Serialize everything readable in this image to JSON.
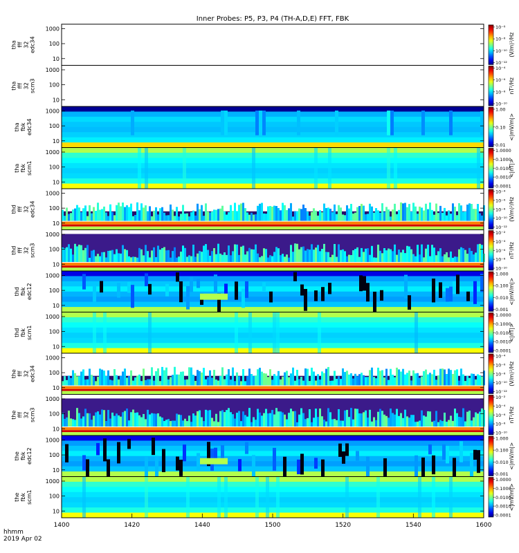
{
  "title": "Inner Probes: P5, P3, P4 (TH-A,D,E) FFT, FBK",
  "footer": {
    "time_label": "hhmm",
    "date_label": "2019 Apr 02"
  },
  "chart_data": {
    "type": "heatmap",
    "title": "Inner Probes: P5, P3, P4 (TH-A,D,E) FFT, FBK",
    "x_ticks": [
      "1400",
      "1420",
      "1440",
      "1500",
      "1520",
      "1540",
      "1600"
    ],
    "xlim": [
      "1400",
      "1600"
    ],
    "y_scale": "log",
    "y_ticks": [
      "10",
      "100",
      "1000"
    ],
    "colormap": "rainbow",
    "panels": [
      {
        "id": "tha-fff-edc34",
        "ylabel": [
          "tha",
          "fff",
          "32",
          "edc34"
        ],
        "style": "fff_empty",
        "cbar_label": "(V/m)²/Hz",
        "cbar_ticks": [
          "10⁻⁶",
          "10⁻⁸",
          "10⁻¹⁰",
          "10⁻¹²"
        ]
      },
      {
        "id": "tha-fff-scm3",
        "ylabel": [
          "tha",
          "fff",
          "32",
          "scm3"
        ],
        "style": "fff_empty",
        "cbar_label": "nT²/Hz",
        "cbar_ticks": [
          "10⁻⁴",
          "10⁻⁶",
          "10⁻⁸",
          "10⁻¹⁰"
        ]
      },
      {
        "id": "tha-fbk-edc34",
        "ylabel": [
          "tha",
          "fbk",
          "edc34"
        ],
        "style": "fbk_e_a",
        "cbar_label": "<|mV/m|>",
        "cbar_ticks": [
          "1.00",
          "0.10",
          "0.01"
        ]
      },
      {
        "id": "tha-fbk-scm1",
        "ylabel": [
          "tha",
          "fbk",
          "scm1"
        ],
        "style": "fbk_b",
        "cbar_label": "<|nT|>",
        "cbar_ticks": [
          "1.0000",
          "0.1000",
          "0.0100",
          "0.0010",
          "0.0001"
        ]
      },
      {
        "id": "thd-fff-edc34",
        "ylabel": [
          "thd",
          "fff",
          "32",
          "edc34"
        ],
        "style": "fff_e",
        "cbar_label": "(V/m)²/Hz",
        "cbar_ticks": [
          "10⁻⁴",
          "10⁻⁶",
          "10⁻⁸",
          "10⁻¹⁰",
          "10⁻¹²"
        ]
      },
      {
        "id": "thd-fff-scm3",
        "ylabel": [
          "thd",
          "fff",
          "32",
          "scm3"
        ],
        "style": "fff_b",
        "cbar_label": "nT²/Hz",
        "cbar_ticks": [
          "10⁻²",
          "10⁻⁴",
          "10⁻⁶",
          "10⁻⁸",
          "10⁻¹⁰"
        ]
      },
      {
        "id": "thd-fbk-edc12",
        "ylabel": [
          "thd",
          "fbk",
          "edc12"
        ],
        "style": "fbk_e",
        "cbar_label": "<|mV/m|>",
        "cbar_ticks": [
          "1.000",
          "0.100",
          "0.010",
          "0.001"
        ]
      },
      {
        "id": "thd-fbk-scm1",
        "ylabel": [
          "thd",
          "fbk",
          "scm1"
        ],
        "style": "fbk_b",
        "cbar_label": "<|nT|>",
        "cbar_ticks": [
          "1.0000",
          "0.1000",
          "0.0100",
          "0.0010",
          "0.0001"
        ]
      },
      {
        "id": "the-fff-edc34",
        "ylabel": [
          "the",
          "fff",
          "32",
          "edc34"
        ],
        "style": "fff_e",
        "cbar_label": "(V/m)²/Hz",
        "cbar_ticks": [
          "10⁻⁴",
          "10⁻⁶",
          "10⁻⁸",
          "10⁻¹⁰",
          "10⁻¹²"
        ]
      },
      {
        "id": "the-fff-scm3",
        "ylabel": [
          "the",
          "fff",
          "32",
          "scm3"
        ],
        "style": "fff_b",
        "cbar_label": "nT²/Hz",
        "cbar_ticks": [
          "10⁻²",
          "10⁻⁴",
          "10⁻⁶",
          "10⁻⁸",
          "10⁻¹⁰"
        ]
      },
      {
        "id": "the-fbk-edc12",
        "ylabel": [
          "the",
          "fbk",
          "edc12"
        ],
        "style": "fbk_e",
        "cbar_label": "<|mV/m|>",
        "cbar_ticks": [
          "1.000",
          "0.100",
          "0.010",
          "0.001"
        ]
      },
      {
        "id": "the-fbk-scm1",
        "ylabel": [
          "the",
          "fbk",
          "scm1"
        ],
        "style": "fbk_b",
        "cbar_label": "<|mV/m|>",
        "cbar_ticks": [
          "1.0000",
          "0.1000",
          "0.0100",
          "0.0010",
          "0.0001"
        ]
      }
    ]
  }
}
